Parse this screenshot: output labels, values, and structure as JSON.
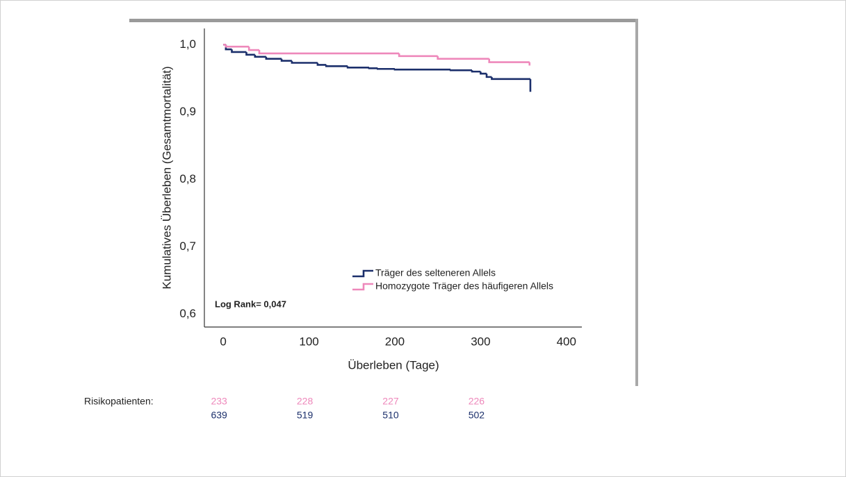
{
  "chart_data": {
    "type": "step",
    "ylabel": "Kumulatives Überleben (Gesamtmortalität)",
    "xlabel": "Überleben (Tage)",
    "annotation": "Log Rank= 0,047",
    "xlim": [
      -22,
      418
    ],
    "ylim": [
      0.581,
      1.024
    ],
    "xticks": [
      0,
      100,
      200,
      300,
      400
    ],
    "yticks": [
      {
        "value": 0.6,
        "label": "0,6"
      },
      {
        "value": 0.7,
        "label": "0,7"
      },
      {
        "value": 0.8,
        "label": "0,8"
      },
      {
        "value": 0.9,
        "label": "0,9"
      },
      {
        "value": 1.0,
        "label": "1,0"
      }
    ],
    "legend": "lower right",
    "series": [
      {
        "name": "Träger des selteneren Allels",
        "color": "#1b2f6b",
        "x": [
          0,
          3,
          10,
          27,
          37,
          50,
          68,
          80,
          110,
          120,
          145,
          170,
          180,
          200,
          265,
          290,
          300,
          307,
          313,
          358
        ],
        "values": [
          1.0,
          0.993,
          0.989,
          0.985,
          0.982,
          0.979,
          0.976,
          0.973,
          0.97,
          0.968,
          0.966,
          0.965,
          0.964,
          0.963,
          0.962,
          0.96,
          0.957,
          0.952,
          0.949,
          0.93
        ]
      },
      {
        "name": "Homozygote Träger des häufigeren Allels",
        "color": "#ee88bb",
        "x": [
          0,
          3,
          30,
          42,
          205,
          250,
          310,
          357
        ],
        "values": [
          1.0,
          0.997,
          0.992,
          0.987,
          0.983,
          0.979,
          0.974,
          0.969
        ]
      }
    ],
    "risk_table": {
      "label": "Risikopatienten:",
      "x": [
        0,
        100,
        200,
        300
      ],
      "rows": [
        [
          233,
          228,
          227,
          226
        ],
        [
          639,
          519,
          510,
          502
        ]
      ]
    }
  }
}
